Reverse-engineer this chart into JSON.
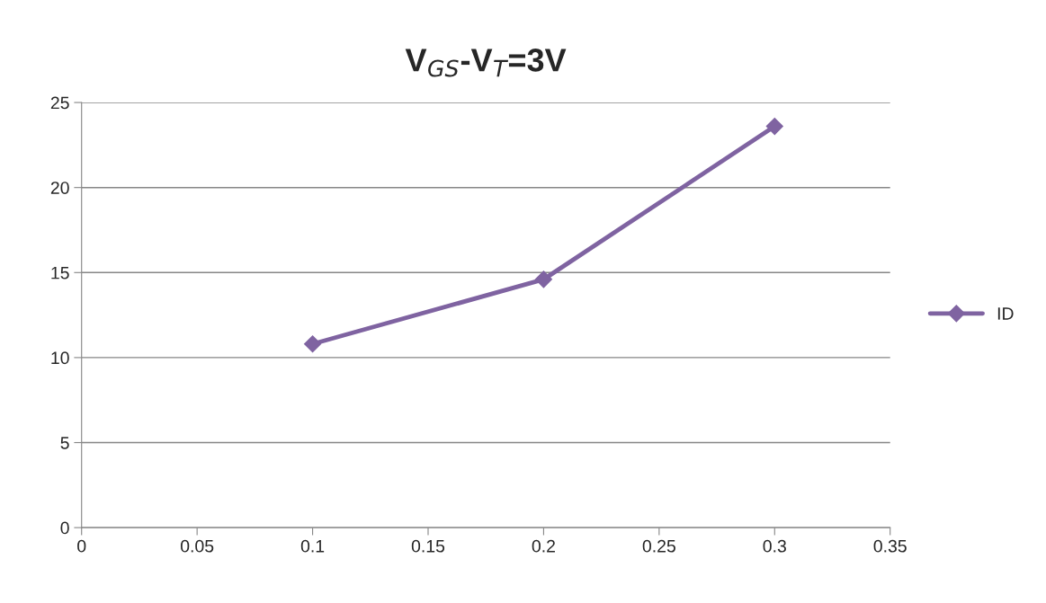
{
  "chart_data": {
    "type": "line",
    "title": "V$_{GS}$-V$_{T}$=3V",
    "x": [
      0.1,
      0.2,
      0.3
    ],
    "series": [
      {
        "name": "ID",
        "color": "#7f63a1",
        "values": [
          10.8,
          14.6,
          23.6
        ]
      }
    ],
    "xlim": [
      0,
      0.35
    ],
    "xticks": [
      0,
      0.05,
      0.1,
      0.15,
      0.2,
      0.25,
      0.3,
      0.35
    ],
    "ylim": [
      0,
      25
    ],
    "yticks": [
      0,
      5,
      10,
      15,
      20,
      25
    ],
    "grid": "y",
    "legend": "right",
    "marker": "diamond",
    "line_style": "solid"
  }
}
